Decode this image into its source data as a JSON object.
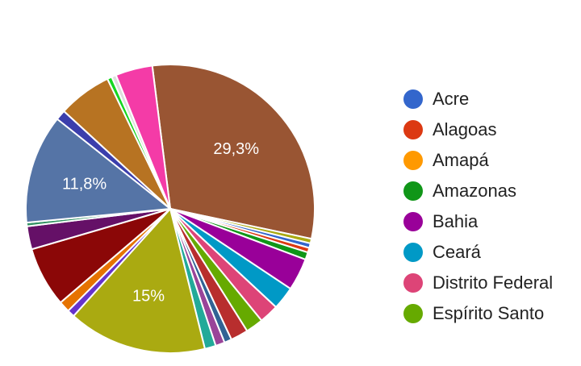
{
  "chart_data": {
    "type": "pie",
    "slices": [
      {
        "label": "",
        "value": 29.3,
        "color": "#995533",
        "label_text": "29,3%"
      },
      {
        "label": "",
        "value": 0.5,
        "color": "#aaaa11"
      },
      {
        "label": "",
        "value": 0.5,
        "color": "#3366cc"
      },
      {
        "label": "",
        "value": 0.5,
        "color": "#dc3912"
      },
      {
        "label": "",
        "value": 0.8,
        "color": "#109618"
      },
      {
        "label": "",
        "value": 3.5,
        "color": "#990099"
      },
      {
        "label": "",
        "value": 2.5,
        "color": "#0099c6"
      },
      {
        "label": "",
        "value": 2.1,
        "color": "#dd4477"
      },
      {
        "label": "",
        "value": 1.9,
        "color": "#66aa00"
      },
      {
        "label": "",
        "value": 1.9,
        "color": "#b82e2e"
      },
      {
        "label": "",
        "value": 0.8,
        "color": "#316395"
      },
      {
        "label": "",
        "value": 1.0,
        "color": "#994499"
      },
      {
        "label": "",
        "value": 1.2,
        "color": "#22aa99"
      },
      {
        "label": "",
        "value": 15,
        "color": "#aaaa11",
        "label_text": "15%"
      },
      {
        "label": "",
        "value": 0.8,
        "color": "#6633cc"
      },
      {
        "label": "",
        "value": 1.2,
        "color": "#e67300"
      },
      {
        "label": "",
        "value": 6.5,
        "color": "#8b0707"
      },
      {
        "label": "",
        "value": 2.5,
        "color": "#651067"
      },
      {
        "label": "",
        "value": 0.4,
        "color": "#329262"
      },
      {
        "label": "",
        "value": 11.8,
        "color": "#5574a6",
        "label_text": "11,8%"
      },
      {
        "label": "",
        "value": 1.1,
        "color": "#3b3eac"
      },
      {
        "label": "",
        "value": 5.8,
        "color": "#b77322"
      },
      {
        "label": "",
        "value": 0.5,
        "color": "#16d620"
      },
      {
        "label": "",
        "value": 0.5,
        "color": "#dddddd"
      },
      {
        "label": "",
        "value": 4.0,
        "color": "#f43ba7"
      }
    ],
    "legend": [
      {
        "name": "Acre",
        "color": "#3366cc"
      },
      {
        "name": "Alagoas",
        "color": "#dc3912"
      },
      {
        "name": "Amapá",
        "color": "#ff9900"
      },
      {
        "name": "Amazonas",
        "color": "#109618"
      },
      {
        "name": "Bahia",
        "color": "#990099"
      },
      {
        "name": "Ceará",
        "color": "#0099c6"
      },
      {
        "name": "Distrito Federal",
        "color": "#dd4477"
      },
      {
        "name": "Espírito Santo",
        "color": "#66aa00"
      }
    ],
    "legend_position": "right",
    "title": ""
  }
}
